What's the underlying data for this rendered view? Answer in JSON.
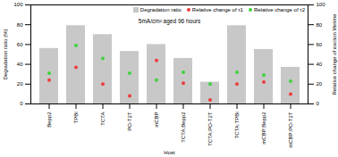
{
  "chart_data": {
    "type": "bar",
    "annotations": [
      "5mA/cm² aged 96 hours"
    ],
    "x_label": "Host",
    "y_label": "Degradation ratio (%)",
    "y2_label": "Relative change of exciton lifetime",
    "categories": [
      "Bepp2",
      "TPBi",
      "TCTA",
      "PO-T2T",
      "mCBP",
      "TCTA:Bepp2",
      "TCTA:PO-T2T",
      "TCTA:TPBi",
      "mCBP:Bepp2",
      "mCBP:PO-T2T"
    ],
    "series": [
      {
        "name": "Degradation ratio",
        "type": "bar",
        "color": "#c8c8c8",
        "values": [
          56,
          79,
          70,
          53,
          60,
          46,
          22,
          79,
          55,
          37
        ]
      },
      {
        "name": "Relative change of τ1",
        "type": "scatter",
        "marker": "circle",
        "color": "#f03c3c",
        "axis": "y2",
        "values": [
          24,
          37,
          20,
          8,
          44,
          21,
          4,
          20,
          22,
          10
        ]
      },
      {
        "name": "Relative change of τ2",
        "type": "scatter",
        "marker": "circle",
        "color": "#3fd23f",
        "axis": "y2",
        "values": [
          31,
          59,
          46,
          31,
          24,
          32,
          20,
          32,
          29,
          23
        ]
      }
    ],
    "ylim": [
      0,
      100
    ],
    "yticks": [
      0,
      20,
      40,
      60,
      80,
      100
    ],
    "y2lim": [
      0,
      100
    ],
    "y2ticks": [
      0,
      20,
      40,
      60,
      80,
      100
    ],
    "legend": "upper right"
  }
}
